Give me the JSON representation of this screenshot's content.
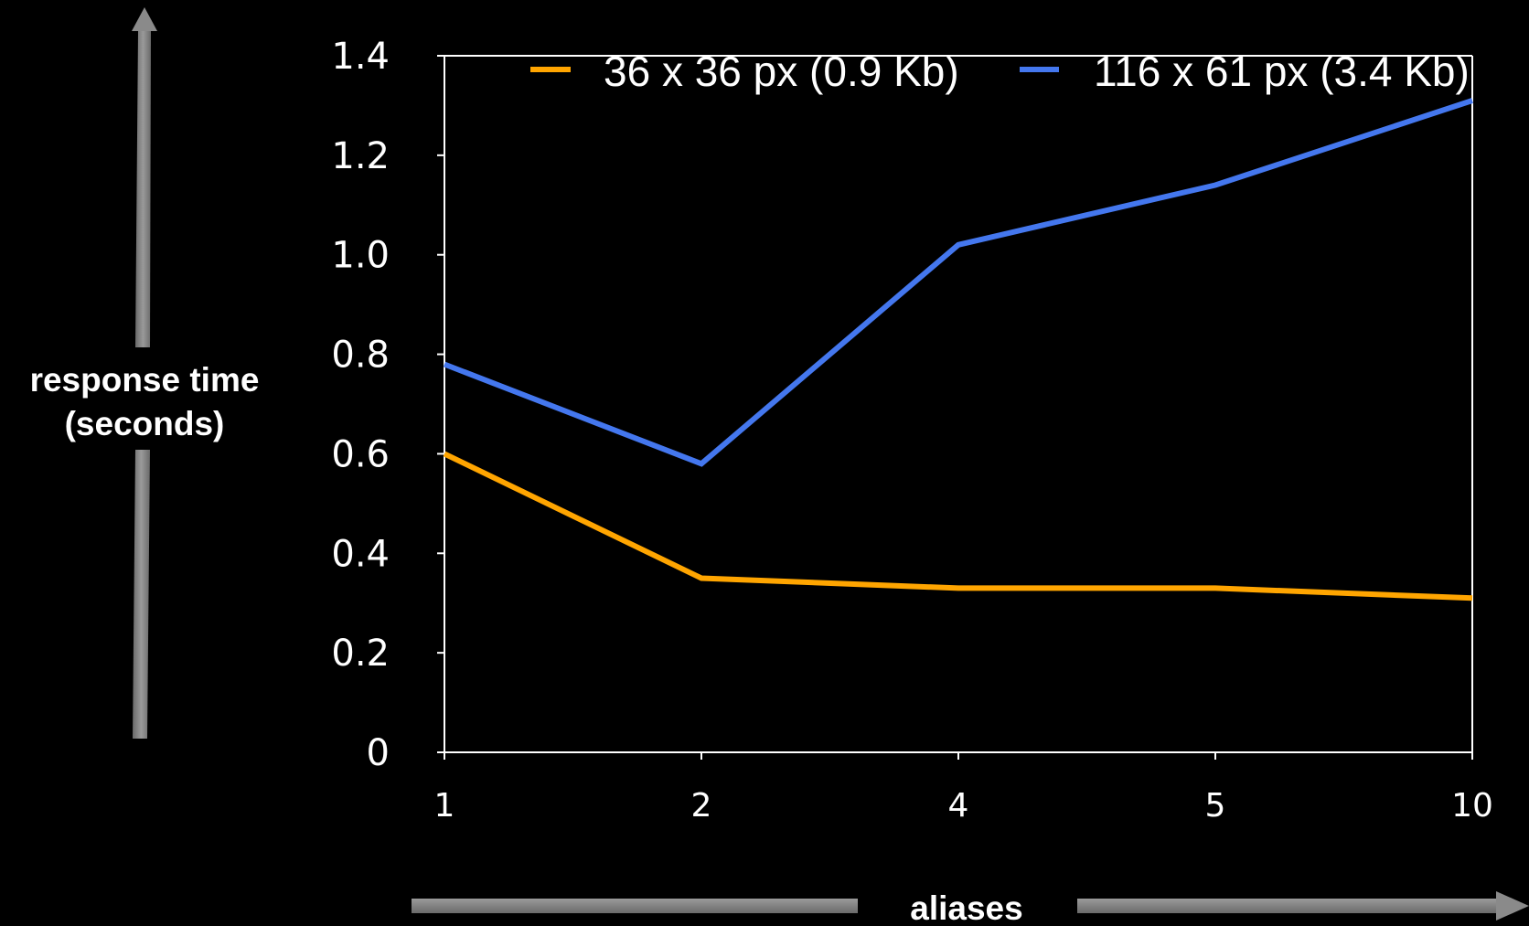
{
  "chart_data": {
    "type": "line",
    "title": "",
    "xlabel": "aliases",
    "ylabel_lines": [
      "response time",
      "(seconds)"
    ],
    "categories": [
      "1",
      "2",
      "4",
      "5",
      "10"
    ],
    "ylim": [
      0,
      1.4
    ],
    "yticks": [
      "0",
      "0.2",
      "0.4",
      "0.6",
      "0.8",
      "1.0",
      "1.2",
      "1.4"
    ],
    "grid": false,
    "legend_position": "top",
    "series": [
      {
        "name": "36 x 36 px (0.9 Kb)",
        "color": "#ffa500",
        "values": [
          0.6,
          0.35,
          0.33,
          0.33,
          0.31
        ]
      },
      {
        "name": "116 x 61 px (3.4 Kb)",
        "color": "#4477ee",
        "values": [
          0.78,
          0.58,
          1.02,
          1.14,
          1.31
        ]
      }
    ],
    "axis_color": "#ffffff",
    "arrow_color": "#8a8a8a"
  }
}
